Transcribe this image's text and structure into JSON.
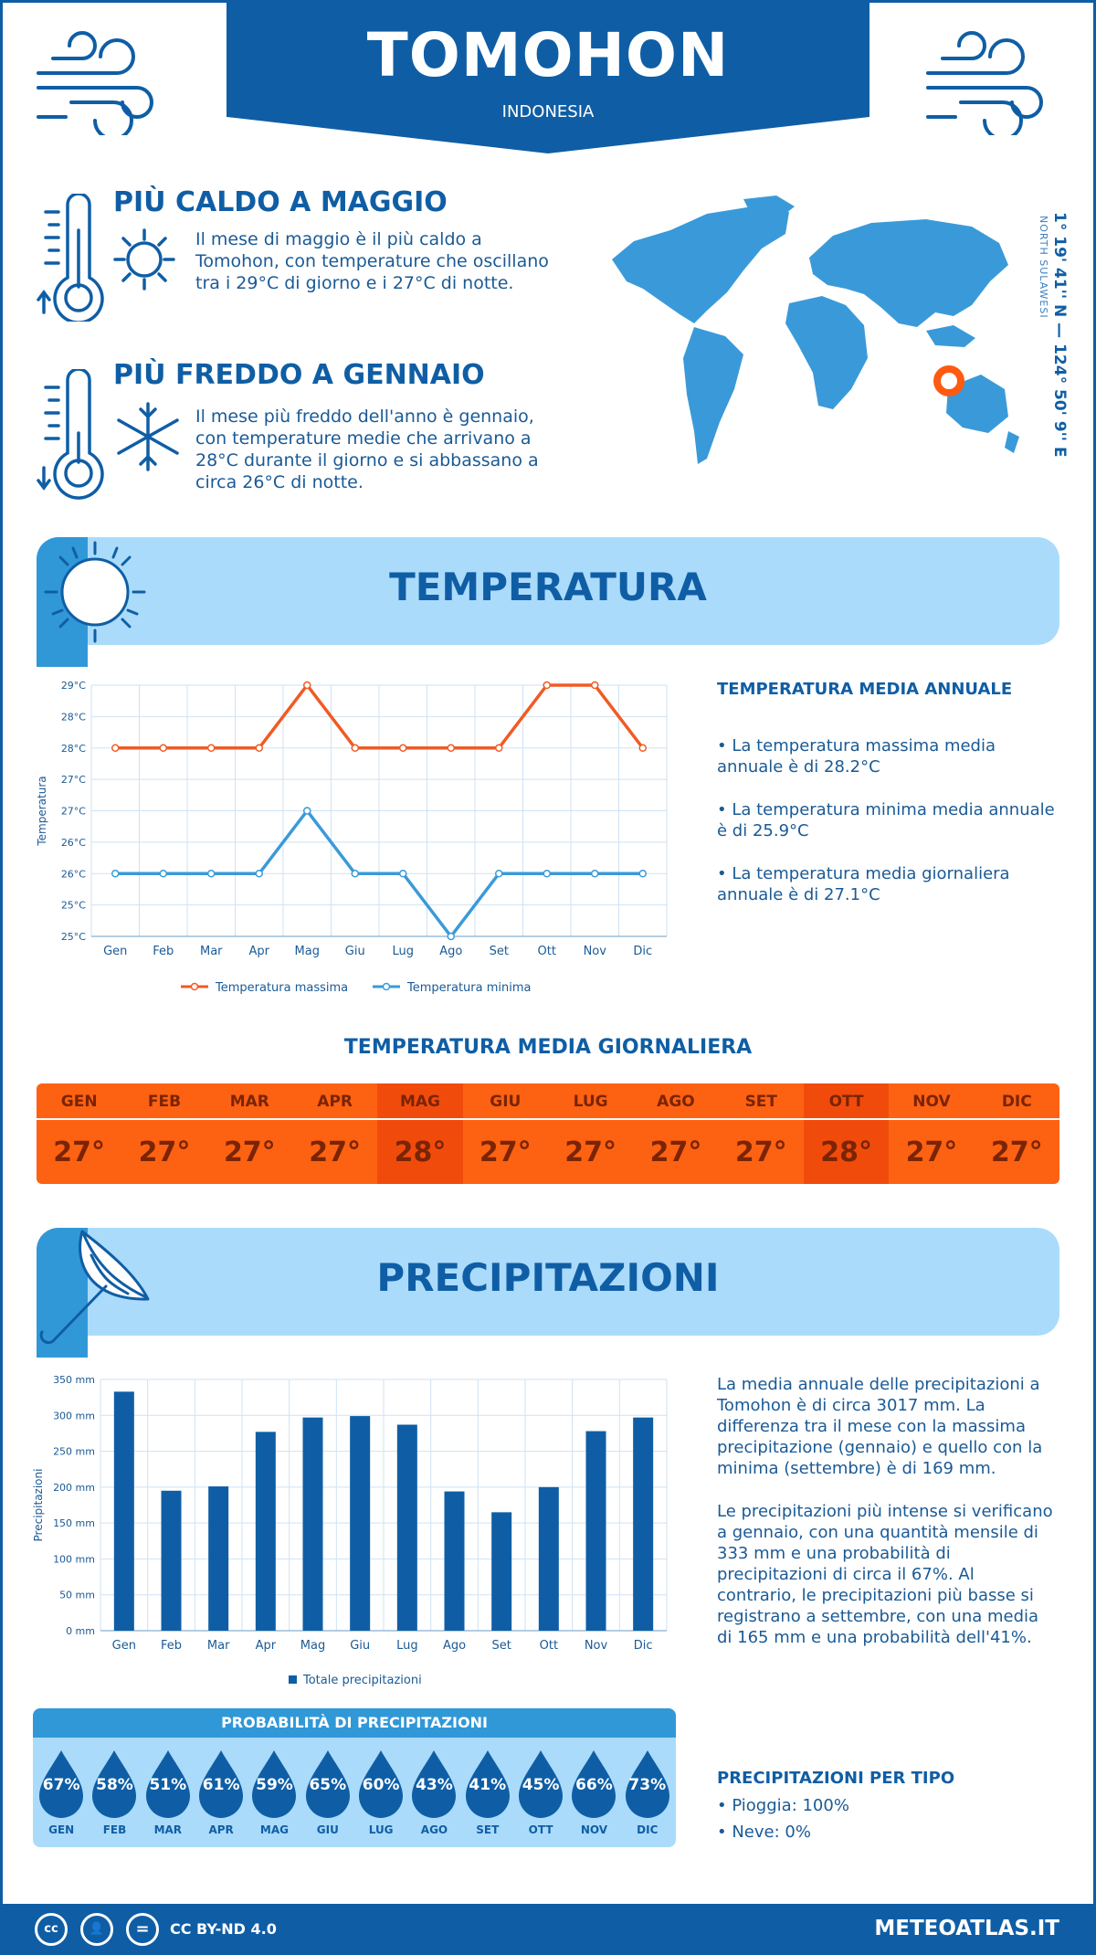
{
  "header": {
    "city": "TOMOHON",
    "country": "INDONESIA"
  },
  "location": {
    "coordinates": "1° 19' 41'' N — 124° 50' 9'' E",
    "region": "NORTH SULAWESI"
  },
  "facts": {
    "hottest": {
      "title": "PIÙ CALDO A MAGGIO",
      "text": "Il mese di maggio è il più caldo a Tomohon, con temperature che oscillano tra i 29°C di giorno e i 27°C di notte."
    },
    "coldest": {
      "title": "PIÙ FREDDO A GENNAIO",
      "text": "Il mese più freddo dell'anno è gennaio, con temperature medie che arrivano a 28°C durante il giorno e si abbassano a circa 26°C di notte."
    }
  },
  "temperature_section": {
    "title": "TEMPERATURA",
    "annual_title": "TEMPERATURA MEDIA ANNUALE",
    "bullets": [
      "• La temperatura massima media annuale è di 28.2°C",
      "• La temperatura minima media annuale è di 25.9°C",
      "• La temperatura media giornaliera annuale è di 27.1°C"
    ],
    "daily_title": "TEMPERATURA MEDIA GIORNALIERA",
    "daily": [
      {
        "month": "GEN",
        "value": "27°",
        "hot": false
      },
      {
        "month": "FEB",
        "value": "27°",
        "hot": false
      },
      {
        "month": "MAR",
        "value": "27°",
        "hot": false
      },
      {
        "month": "APR",
        "value": "27°",
        "hot": false
      },
      {
        "month": "MAG",
        "value": "28°",
        "hot": true
      },
      {
        "month": "GIU",
        "value": "27°",
        "hot": false
      },
      {
        "month": "LUG",
        "value": "27°",
        "hot": false
      },
      {
        "month": "AGO",
        "value": "27°",
        "hot": false
      },
      {
        "month": "SET",
        "value": "27°",
        "hot": false
      },
      {
        "month": "OTT",
        "value": "28°",
        "hot": true
      },
      {
        "month": "NOV",
        "value": "27°",
        "hot": false
      },
      {
        "month": "DIC",
        "value": "27°",
        "hot": false
      }
    ]
  },
  "precip_section": {
    "title": "PRECIPITAZIONI",
    "para1": "La media annuale delle precipitazioni a Tomohon è di circa 3017 mm. La differenza tra il mese con la massima precipitazione (gennaio) e quello con la minima (settembre) è di 169 mm.",
    "para2": "Le precipitazioni più intense si verificano a gennaio, con una quantità mensile di 333 mm e una probabilità di precipitazioni di circa il 67%. Al contrario, le precipitazioni più basse si registrano a settembre, con una media di 165 mm e una probabilità dell'41%.",
    "prob_title": "PROBABILITÀ DI PRECIPITAZIONI",
    "prob": [
      {
        "month": "GEN",
        "pct": "67%"
      },
      {
        "month": "FEB",
        "pct": "58%"
      },
      {
        "month": "MAR",
        "pct": "51%"
      },
      {
        "month": "APR",
        "pct": "61%"
      },
      {
        "month": "MAG",
        "pct": "59%"
      },
      {
        "month": "GIU",
        "pct": "65%"
      },
      {
        "month": "LUG",
        "pct": "60%"
      },
      {
        "month": "AGO",
        "pct": "43%"
      },
      {
        "month": "SET",
        "pct": "41%"
      },
      {
        "month": "OTT",
        "pct": "45%"
      },
      {
        "month": "NOV",
        "pct": "66%"
      },
      {
        "month": "DIC",
        "pct": "73%"
      }
    ],
    "type_title": "PRECIPITAZIONI PER TIPO",
    "types": [
      "• Pioggia: 100%",
      "• Neve: 0%"
    ]
  },
  "chart_data": [
    {
      "type": "line",
      "categories": [
        "Gen",
        "Feb",
        "Mar",
        "Apr",
        "Mag",
        "Giu",
        "Lug",
        "Ago",
        "Set",
        "Ott",
        "Nov",
        "Dic"
      ],
      "ylabel": "Temperatura",
      "yticks": [
        "25°C",
        "25°C",
        "26°C",
        "26°C",
        "27°C",
        "27°C",
        "28°C",
        "28°C",
        "29°C"
      ],
      "ylim": [
        25,
        29
      ],
      "series": [
        {
          "name": "Temperatura massima",
          "color": "#f15a24",
          "values": [
            28,
            28,
            28,
            28,
            29,
            28,
            28,
            28,
            28,
            29,
            29,
            28
          ]
        },
        {
          "name": "Temperatura minima",
          "color": "#3a9ad9",
          "values": [
            26,
            26,
            26,
            26,
            27,
            26,
            26,
            25,
            26,
            26,
            26,
            26
          ]
        }
      ]
    },
    {
      "type": "bar",
      "categories": [
        "Gen",
        "Feb",
        "Mar",
        "Apr",
        "Mag",
        "Giu",
        "Lug",
        "Ago",
        "Set",
        "Ott",
        "Nov",
        "Dic"
      ],
      "ylabel": "Precipitazioni",
      "yticks": [
        "0 mm",
        "50 mm",
        "100 mm",
        "150 mm",
        "200 mm",
        "250 mm",
        "300 mm",
        "350 mm"
      ],
      "ylim": [
        0,
        350
      ],
      "series": [
        {
          "name": "Totale precipitazioni",
          "color": "#0f5ea5",
          "values": [
            333,
            195,
            201,
            277,
            297,
            299,
            287,
            194,
            165,
            200,
            278,
            297
          ]
        }
      ]
    }
  ],
  "footer": {
    "license": "CC BY-ND 4.0",
    "site": "METEOATLAS.IT"
  }
}
